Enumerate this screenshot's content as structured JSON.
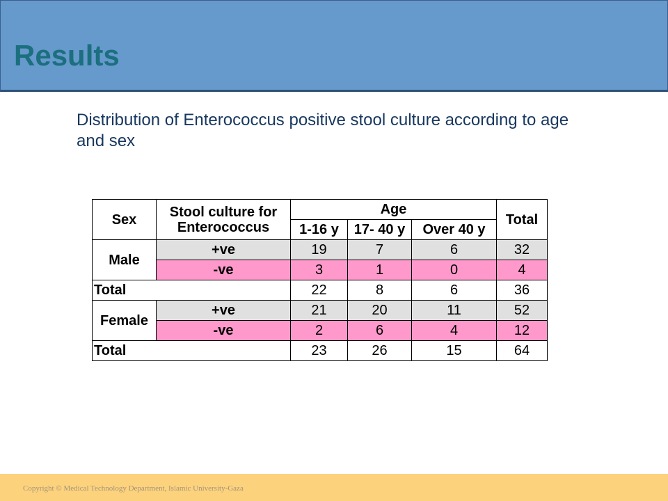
{
  "header": {
    "title": "Results"
  },
  "subtitle": "Distribution of Enterococcus positive stool culture according to age and sex",
  "table": {
    "header": {
      "sex": "Sex",
      "culture": "Stool culture for Enterococcus",
      "age": "Age",
      "total": "Total",
      "age_groups": [
        "1-16 y",
        "17- 40 y",
        "Over 40 y"
      ]
    },
    "groups": [
      {
        "sex": "Male",
        "rows": [
          {
            "culture": "+ve",
            "values": [
              19,
              7,
              6,
              32
            ]
          },
          {
            "culture": "-ve",
            "values": [
              3,
              1,
              0,
              4
            ]
          }
        ],
        "total": {
          "label": "Total",
          "values": [
            22,
            8,
            6,
            36
          ]
        }
      },
      {
        "sex": "Female",
        "rows": [
          {
            "culture": "+ve",
            "values": [
              21,
              20,
              11,
              52
            ]
          },
          {
            "culture": "-ve",
            "values": [
              2,
              6,
              4,
              12
            ]
          }
        ],
        "total": {
          "label": "Total",
          "values": [
            23,
            26,
            15,
            64
          ]
        }
      }
    ]
  },
  "footer": {
    "text": "Copyright © Medical Technology Department, Islamic University-Gaza"
  }
}
